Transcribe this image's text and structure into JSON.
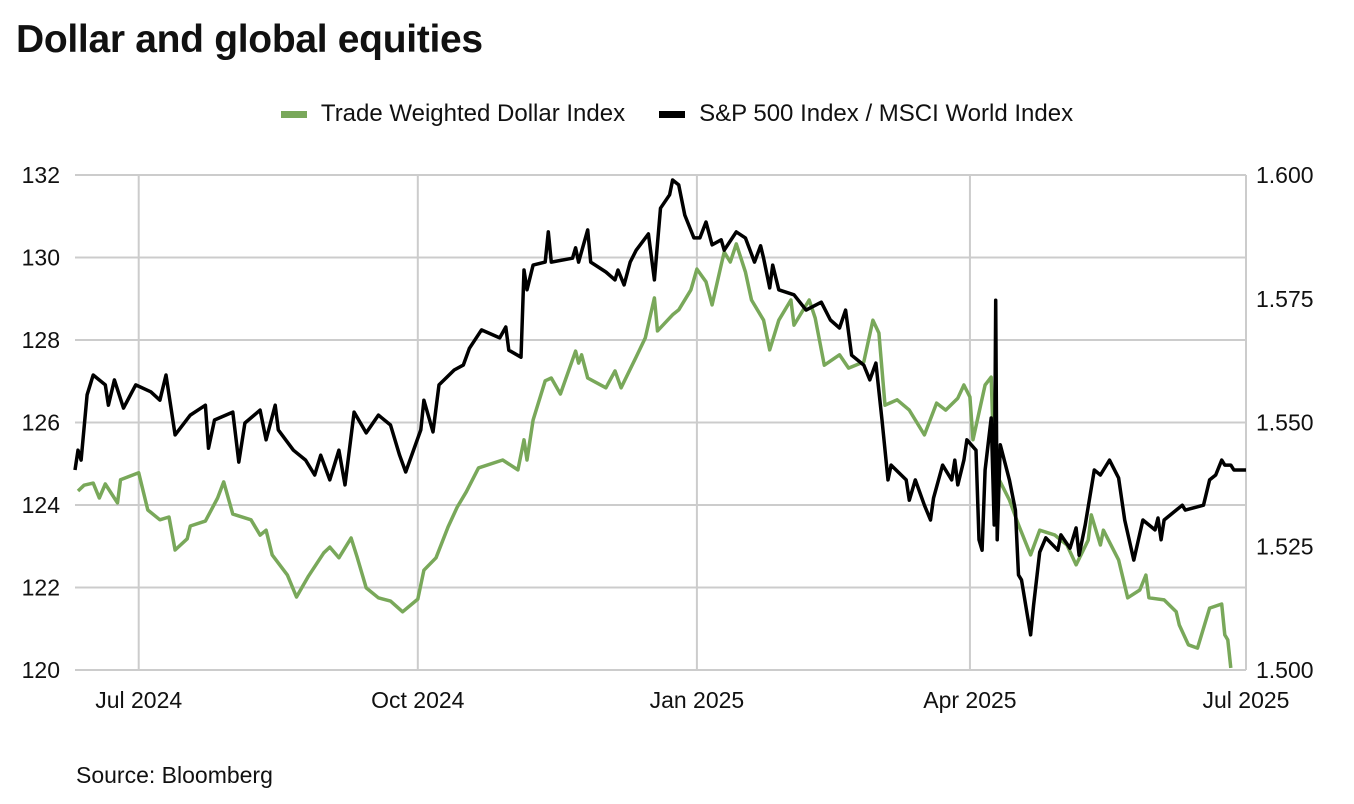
{
  "chart_data": {
    "type": "line",
    "title": "Dollar and global equities",
    "source": "Source: Bloomberg",
    "x_unit": "days since 2024-07-01",
    "xlim": [
      -21,
      365
    ],
    "x_ticks": [
      {
        "label": "Jul 2024",
        "x": 0
      },
      {
        "label": "Oct 2024",
        "x": 92
      },
      {
        "label": "Jan 2025",
        "x": 184
      },
      {
        "label": "Apr 2025",
        "x": 274
      },
      {
        "label": "Jul 2025",
        "x": 365
      }
    ],
    "y_left": {
      "lim": [
        120,
        132
      ],
      "ticks": [
        "120",
        "122",
        "124",
        "126",
        "128",
        "130",
        "132"
      ]
    },
    "y_right": {
      "lim": [
        1.5,
        1.6
      ],
      "ticks": [
        "1.500",
        "1.525",
        "1.550",
        "1.575",
        "1.600"
      ]
    },
    "grid": true,
    "legend_position": "top-center",
    "series": [
      {
        "name": "Trade Weighted Dollar Index",
        "axis": "left",
        "color": "#79a85a",
        "points": [
          [
            -20,
            124.34
          ],
          [
            -18,
            124.48
          ],
          [
            -15,
            124.53
          ],
          [
            -13,
            124.17
          ],
          [
            -11,
            124.51
          ],
          [
            -7,
            124.05
          ],
          [
            -6,
            124.61
          ],
          [
            0,
            124.78
          ],
          [
            3,
            123.88
          ],
          [
            7,
            123.64
          ],
          [
            10,
            123.71
          ],
          [
            12,
            122.91
          ],
          [
            16,
            123.18
          ],
          [
            17,
            123.49
          ],
          [
            22,
            123.61
          ],
          [
            26,
            124.17
          ],
          [
            28,
            124.56
          ],
          [
            31,
            123.78
          ],
          [
            37,
            123.64
          ],
          [
            40,
            123.27
          ],
          [
            42,
            123.39
          ],
          [
            44,
            122.79
          ],
          [
            49,
            122.3
          ],
          [
            52,
            121.77
          ],
          [
            56,
            122.28
          ],
          [
            61,
            122.84
          ],
          [
            63,
            122.98
          ],
          [
            66,
            122.72
          ],
          [
            70,
            123.2
          ],
          [
            72,
            122.74
          ],
          [
            75,
            121.99
          ],
          [
            79,
            121.75
          ],
          [
            83,
            121.67
          ],
          [
            87,
            121.41
          ],
          [
            92,
            121.72
          ],
          [
            94,
            122.42
          ],
          [
            98,
            122.72
          ],
          [
            102,
            123.47
          ],
          [
            105,
            123.95
          ],
          [
            108,
            124.32
          ],
          [
            112,
            124.9
          ],
          [
            120,
            125.09
          ],
          [
            125,
            124.85
          ],
          [
            127,
            125.58
          ],
          [
            128,
            125.09
          ],
          [
            130,
            126.06
          ],
          [
            134,
            127.01
          ],
          [
            136,
            127.08
          ],
          [
            139,
            126.69
          ],
          [
            144,
            127.73
          ],
          [
            145,
            127.44
          ],
          [
            146,
            127.64
          ],
          [
            148,
            127.08
          ],
          [
            154,
            126.84
          ],
          [
            157,
            127.25
          ],
          [
            159,
            126.84
          ],
          [
            164,
            127.59
          ],
          [
            167,
            128.05
          ],
          [
            170,
            129.02
          ],
          [
            171,
            128.22
          ],
          [
            176,
            128.61
          ],
          [
            178,
            128.73
          ],
          [
            182,
            129.21
          ],
          [
            184,
            129.72
          ],
          [
            187,
            129.41
          ],
          [
            189,
            128.85
          ],
          [
            192,
            129.82
          ],
          [
            193,
            130.13
          ],
          [
            195,
            129.89
          ],
          [
            197,
            130.33
          ],
          [
            200,
            129.65
          ],
          [
            202,
            128.97
          ],
          [
            206,
            128.48
          ],
          [
            208,
            127.76
          ],
          [
            211,
            128.48
          ],
          [
            215,
            128.97
          ],
          [
            216,
            128.36
          ],
          [
            221,
            128.97
          ],
          [
            223,
            128.53
          ],
          [
            226,
            127.39
          ],
          [
            231,
            127.64
          ],
          [
            234,
            127.32
          ],
          [
            239,
            127.47
          ],
          [
            242,
            128.48
          ],
          [
            244,
            128.17
          ],
          [
            246,
            126.42
          ],
          [
            250,
            126.55
          ],
          [
            254,
            126.3
          ],
          [
            259,
            125.7
          ],
          [
            263,
            126.47
          ],
          [
            266,
            126.3
          ],
          [
            270,
            126.59
          ],
          [
            272,
            126.91
          ],
          [
            274,
            126.62
          ],
          [
            275,
            125.58
          ],
          [
            279,
            126.91
          ],
          [
            281,
            127.1
          ],
          [
            282,
            124.85
          ],
          [
            287,
            124.12
          ],
          [
            290,
            123.52
          ],
          [
            294,
            122.79
          ],
          [
            297,
            123.39
          ],
          [
            302,
            123.27
          ],
          [
            306,
            123.03
          ],
          [
            309,
            122.55
          ],
          [
            313,
            123.15
          ],
          [
            314,
            123.76
          ],
          [
            317,
            123.03
          ],
          [
            318,
            123.39
          ],
          [
            323,
            122.67
          ],
          [
            326,
            121.75
          ],
          [
            330,
            121.94
          ],
          [
            332,
            122.3
          ],
          [
            333,
            121.75
          ],
          [
            338,
            121.7
          ],
          [
            342,
            121.41
          ],
          [
            343,
            121.09
          ],
          [
            346,
            120.61
          ],
          [
            349,
            120.53
          ],
          [
            353,
            121.5
          ],
          [
            357,
            121.6
          ],
          [
            358,
            120.85
          ],
          [
            359,
            120.73
          ],
          [
            360,
            120.05
          ]
        ]
      },
      {
        "name": "S&P 500 Index / MSCI World Index",
        "axis": "right",
        "color": "#000000",
        "points": [
          [
            -21,
            1.5404
          ],
          [
            -20,
            1.5444
          ],
          [
            -19,
            1.5424
          ],
          [
            -17,
            1.5556
          ],
          [
            -15,
            1.5596
          ],
          [
            -11,
            1.5576
          ],
          [
            -10,
            1.5535
          ],
          [
            -8,
            1.5586
          ],
          [
            -5,
            1.5529
          ],
          [
            -1,
            1.5576
          ],
          [
            4,
            1.5562
          ],
          [
            7,
            1.5545
          ],
          [
            9,
            1.5596
          ],
          [
            12,
            1.5475
          ],
          [
            17,
            1.5515
          ],
          [
            22,
            1.5535
          ],
          [
            23,
            1.5448
          ],
          [
            25,
            1.5505
          ],
          [
            31,
            1.5521
          ],
          [
            33,
            1.542
          ],
          [
            35,
            1.5499
          ],
          [
            40,
            1.5525
          ],
          [
            42,
            1.5465
          ],
          [
            45,
            1.5535
          ],
          [
            46,
            1.5485
          ],
          [
            51,
            1.5444
          ],
          [
            55,
            1.5424
          ],
          [
            58,
            1.5394
          ],
          [
            60,
            1.5434
          ],
          [
            63,
            1.5384
          ],
          [
            66,
            1.5444
          ],
          [
            68,
            1.5374
          ],
          [
            71,
            1.5521
          ],
          [
            75,
            1.5479
          ],
          [
            79,
            1.5515
          ],
          [
            83,
            1.5495
          ],
          [
            86,
            1.5434
          ],
          [
            88,
            1.54
          ],
          [
            93,
            1.5485
          ],
          [
            94,
            1.5545
          ],
          [
            97,
            1.5481
          ],
          [
            99,
            1.5576
          ],
          [
            104,
            1.5606
          ],
          [
            107,
            1.5616
          ],
          [
            109,
            1.565
          ],
          [
            113,
            1.5687
          ],
          [
            119,
            1.5671
          ],
          [
            121,
            1.5693
          ],
          [
            122,
            1.5646
          ],
          [
            126,
            1.5632
          ],
          [
            127,
            1.5808
          ],
          [
            128,
            1.5768
          ],
          [
            130,
            1.5818
          ],
          [
            134,
            1.5824
          ],
          [
            135,
            1.5885
          ],
          [
            136,
            1.5824
          ],
          [
            143,
            1.5832
          ],
          [
            144,
            1.5853
          ],
          [
            145,
            1.5824
          ],
          [
            148,
            1.5889
          ],
          [
            149,
            1.5824
          ],
          [
            154,
            1.5804
          ],
          [
            157,
            1.5788
          ],
          [
            158,
            1.5808
          ],
          [
            160,
            1.5778
          ],
          [
            162,
            1.5824
          ],
          [
            164,
            1.5848
          ],
          [
            168,
            1.5881
          ],
          [
            170,
            1.5788
          ],
          [
            172,
            1.5933
          ],
          [
            175,
            1.596
          ],
          [
            176,
            1.599
          ],
          [
            178,
            1.598
          ],
          [
            180,
            1.5919
          ],
          [
            183,
            1.5873
          ],
          [
            185,
            1.5873
          ],
          [
            187,
            1.5905
          ],
          [
            189,
            1.5859
          ],
          [
            192,
            1.5869
          ],
          [
            193,
            1.5848
          ],
          [
            197,
            1.5885
          ],
          [
            200,
            1.5873
          ],
          [
            203,
            1.5824
          ],
          [
            205,
            1.5857
          ],
          [
            206,
            1.5832
          ],
          [
            208,
            1.5772
          ],
          [
            209,
            1.5818
          ],
          [
            211,
            1.5768
          ],
          [
            216,
            1.5758
          ],
          [
            220,
            1.5727
          ],
          [
            225,
            1.5743
          ],
          [
            228,
            1.5707
          ],
          [
            231,
            1.5691
          ],
          [
            233,
            1.5727
          ],
          [
            235,
            1.5636
          ],
          [
            239,
            1.5616
          ],
          [
            241,
            1.5586
          ],
          [
            243,
            1.562
          ],
          [
            245,
            1.5505
          ],
          [
            247,
            1.5384
          ],
          [
            248,
            1.5414
          ],
          [
            253,
            1.5384
          ],
          [
            254,
            1.5343
          ],
          [
            256,
            1.5384
          ],
          [
            259,
            1.5333
          ],
          [
            261,
            1.5303
          ],
          [
            262,
            1.5347
          ],
          [
            265,
            1.5414
          ],
          [
            268,
            1.5384
          ],
          [
            269,
            1.5424
          ],
          [
            270,
            1.5374
          ],
          [
            272,
            1.5424
          ],
          [
            273,
            1.5465
          ],
          [
            276,
            1.5444
          ],
          [
            277,
            1.5263
          ],
          [
            278,
            1.5242
          ],
          [
            279,
            1.5404
          ],
          [
            281,
            1.5509
          ],
          [
            282,
            1.5293
          ],
          [
            282.5,
            1.5747
          ],
          [
            283,
            1.5263
          ],
          [
            284,
            1.5455
          ],
          [
            287,
            1.5384
          ],
          [
            289,
            1.5323
          ],
          [
            290,
            1.5192
          ],
          [
            291,
            1.5182
          ],
          [
            294,
            1.5071
          ],
          [
            295,
            1.5131
          ],
          [
            297,
            1.5238
          ],
          [
            299,
            1.5267
          ],
          [
            303,
            1.5242
          ],
          [
            304,
            1.5273
          ],
          [
            307,
            1.5246
          ],
          [
            309,
            1.5287
          ],
          [
            310,
            1.5232
          ],
          [
            312,
            1.5293
          ],
          [
            315,
            1.5404
          ],
          [
            317,
            1.5394
          ],
          [
            320,
            1.5424
          ],
          [
            323,
            1.5388
          ],
          [
            325,
            1.5303
          ],
          [
            328,
            1.5222
          ],
          [
            331,
            1.5303
          ],
          [
            335,
            1.5283
          ],
          [
            336,
            1.5307
          ],
          [
            337,
            1.5263
          ],
          [
            338,
            1.5303
          ],
          [
            342,
            1.5323
          ],
          [
            344,
            1.5333
          ],
          [
            345,
            1.5323
          ],
          [
            351,
            1.5333
          ],
          [
            353,
            1.5384
          ],
          [
            355,
            1.5394
          ],
          [
            357,
            1.5424
          ],
          [
            358,
            1.5414
          ],
          [
            360,
            1.5414
          ],
          [
            361,
            1.5404
          ],
          [
            365,
            1.5404
          ]
        ]
      }
    ]
  }
}
